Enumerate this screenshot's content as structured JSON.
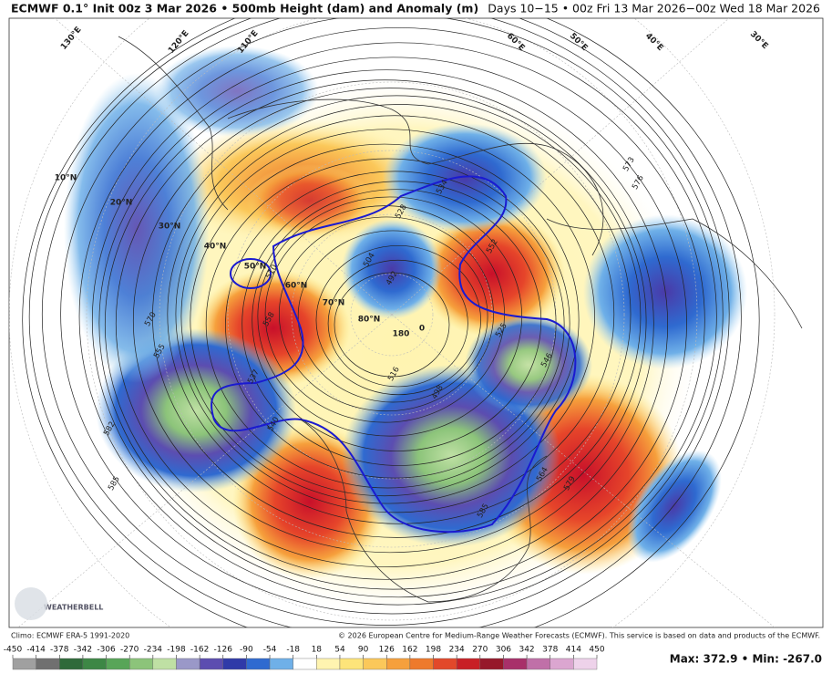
{
  "header": {
    "title": "ECMWF 0.1° Init 00z 3 Mar 2026 • 500mb Height (dam) and Anomaly (m)",
    "valid": "Days 10−15 • 00z Fri 13 Mar 2026−00z Wed 18 Mar 2026"
  },
  "map": {
    "lat_labels": [
      "10°N",
      "20°N",
      "30°N",
      "40°N",
      "50°N",
      "60°N",
      "70°N",
      "80°N"
    ],
    "lon_labels": [
      "130°E",
      "120°E",
      "110°E",
      "60°E",
      "50°E",
      "40°E",
      "30°E",
      "180",
      "0"
    ],
    "contour_labels": [
      "534",
      "528",
      "516",
      "510",
      "504",
      "546",
      "552",
      "558",
      "570",
      "582",
      "585",
      "573",
      "576",
      "579",
      "564",
      "555",
      "540",
      "498",
      "492",
      "525",
      "537",
      "585"
    ],
    "logo": "WEATHERBELL"
  },
  "footer": {
    "climo": "Climo: ECMWF ERA-5 1991-2020",
    "copyright": "© 2026 European Centre for Medium-Range Weather Forecasts (ECMWF). This service is based on data and products of the ECMWF.",
    "extremes": "Max: 372.9 • Min: -267.0"
  },
  "colorbar": {
    "ticks": [
      -450,
      -414,
      -378,
      -342,
      -306,
      -270,
      -234,
      -198,
      -162,
      -126,
      -90,
      -54,
      -18,
      18,
      54,
      90,
      126,
      162,
      198,
      234,
      270,
      306,
      342,
      378,
      414,
      450
    ],
    "colors": [
      "#a0a0a0",
      "#707070",
      "#2f6a3a",
      "#3d8745",
      "#58a558",
      "#8cc47a",
      "#bfe0a4",
      "#9a98c8",
      "#5c4db0",
      "#2f3aa8",
      "#2f6ad0",
      "#6fb0e8",
      "#ffffff",
      "#fff4b0",
      "#fde47a",
      "#fbc85a",
      "#f6a03c",
      "#ee7a2c",
      "#e2482a",
      "#c82026",
      "#96182a",
      "#a8306a",
      "#c070a8",
      "#dba6d0",
      "#eed2ea"
    ]
  }
}
